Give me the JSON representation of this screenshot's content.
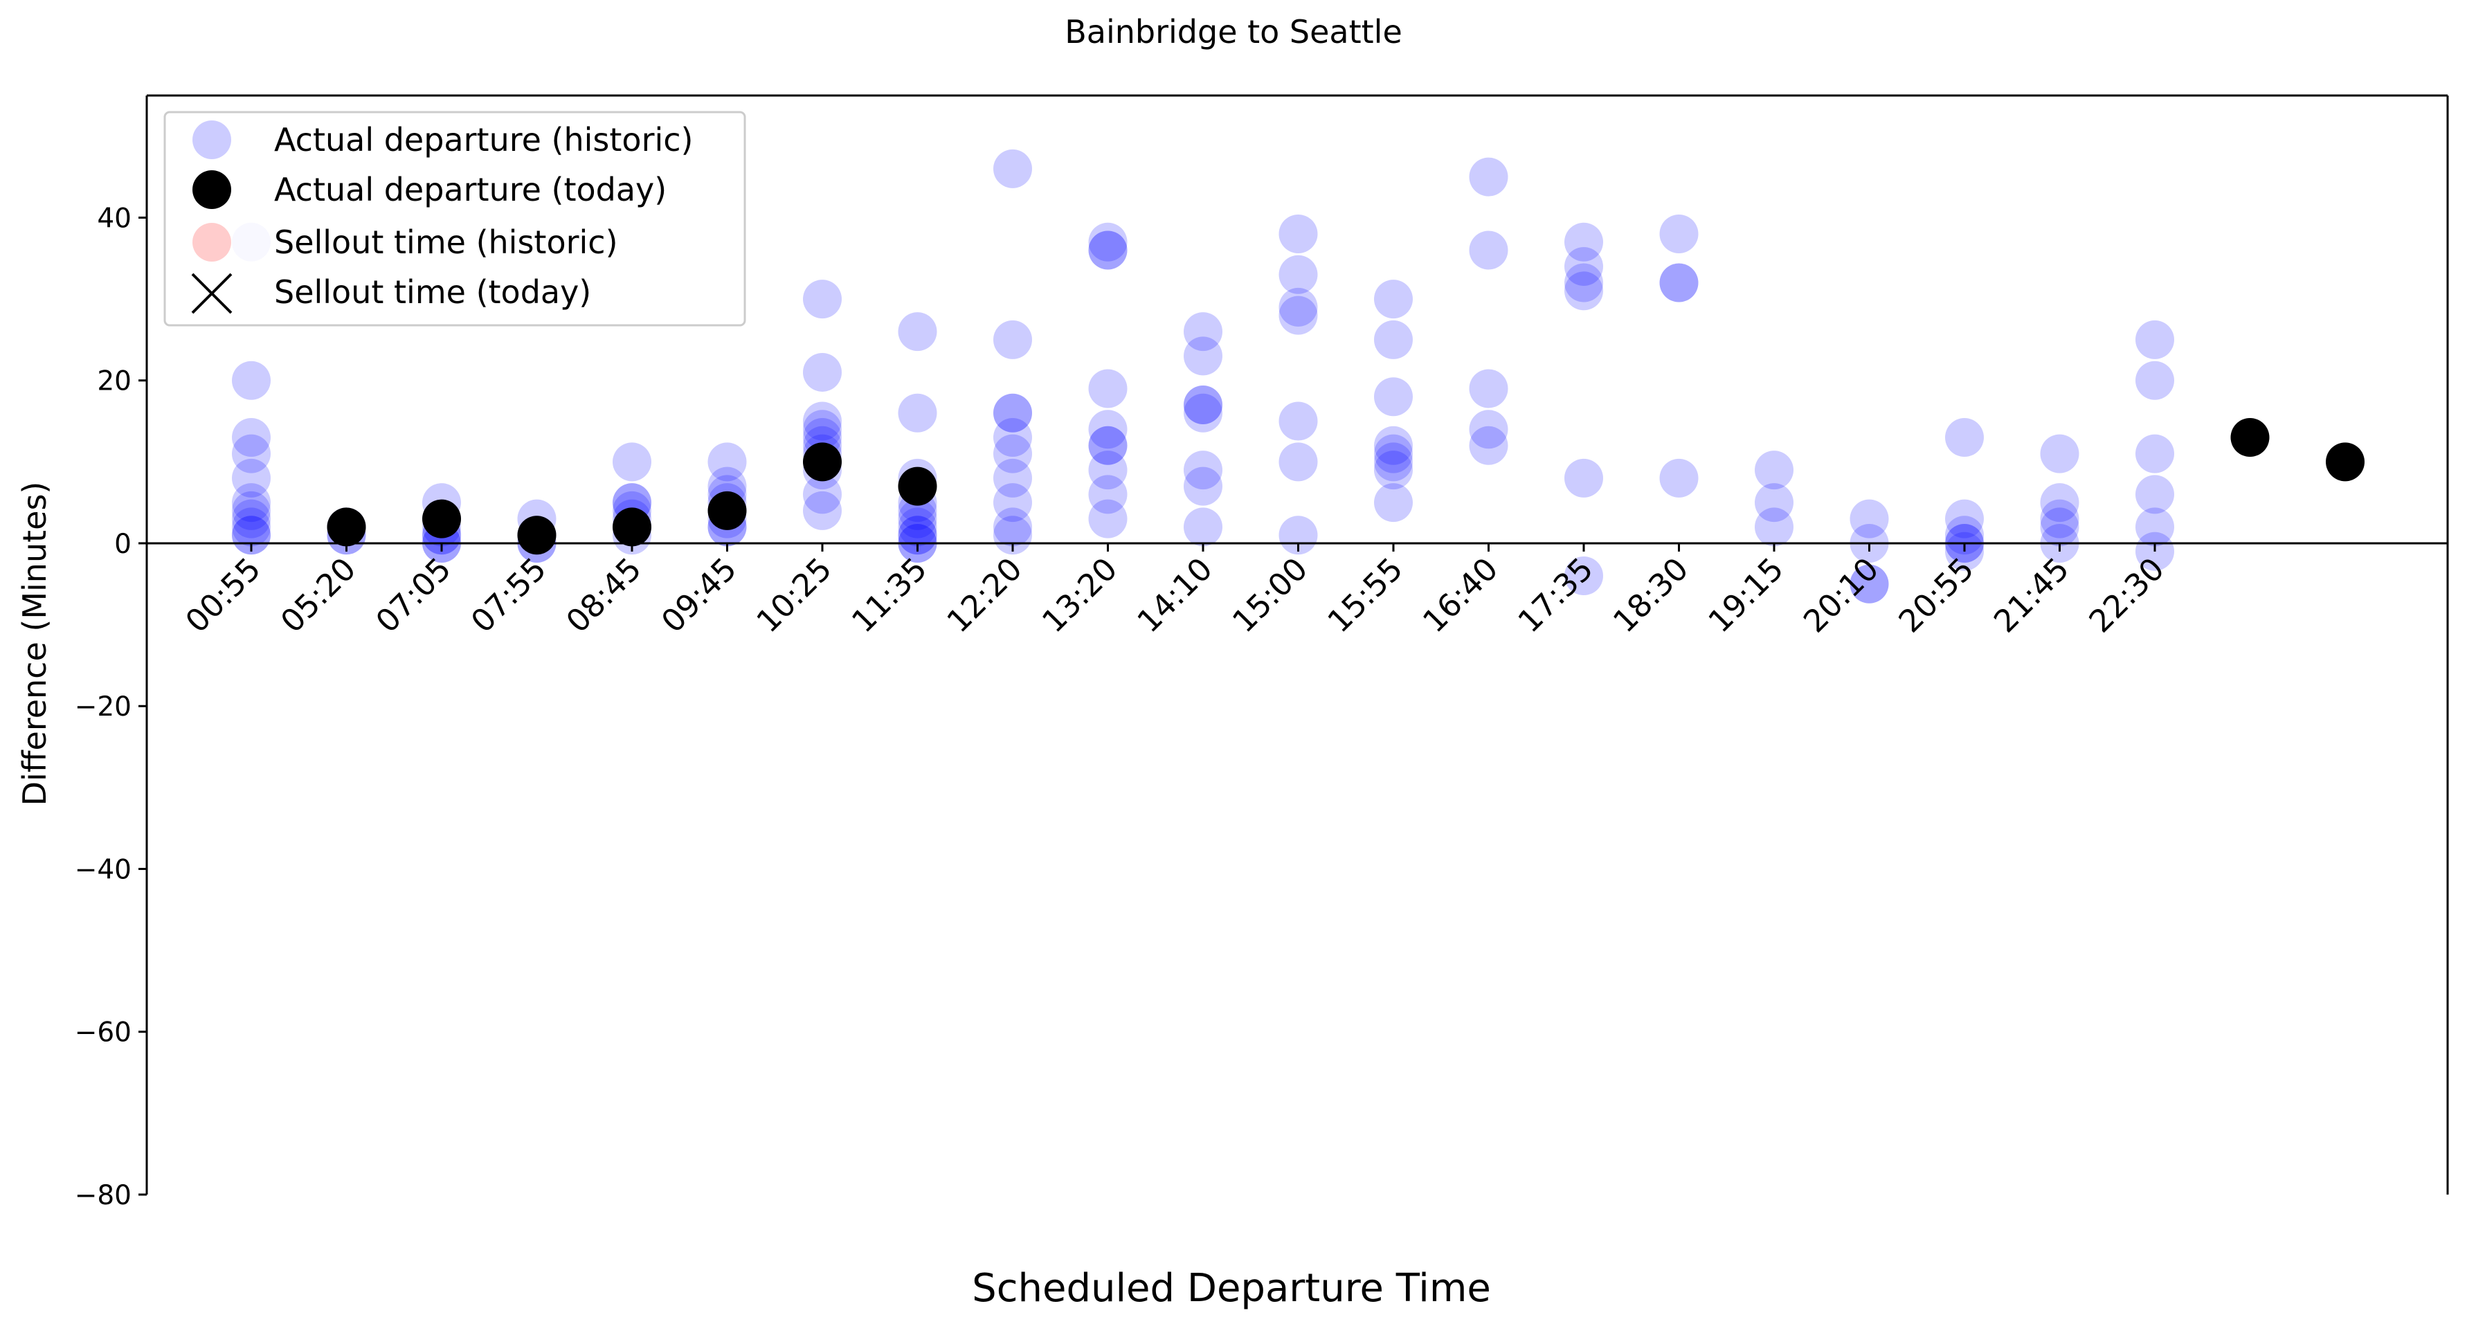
{
  "chart_data": {
    "type": "scatter",
    "title": "Bainbridge to Seattle",
    "xlabel": "Scheduled Departure Time",
    "ylabel": "Difference (Minutes)",
    "ylim": [
      -80,
      55
    ],
    "yticks": [
      40,
      20,
      0,
      -20,
      -40,
      -60,
      -80
    ],
    "ytick_labels": [
      "40",
      "20",
      "0",
      "−20",
      "−40",
      "−60",
      "−80"
    ],
    "zero_line": true,
    "grid": false,
    "legend_position": "top-left",
    "categories": [
      "00:55",
      "05:20",
      "07:05",
      "07:55",
      "08:45",
      "09:45",
      "10:25",
      "11:35",
      "12:20",
      "13:20",
      "14:10",
      "15:00",
      "15:55",
      "16:40",
      "17:35",
      "18:30",
      "19:15",
      "20:10",
      "20:55",
      "21:45",
      "22:30"
    ],
    "x_slot_count": 23,
    "series": [
      {
        "name": "Actual departure (historic)",
        "color": "#0000ff",
        "alpha": 0.2,
        "marker": "circle",
        "points": [
          {
            "x": 0,
            "y": 37
          },
          {
            "x": 0,
            "y": 20
          },
          {
            "x": 0,
            "y": 13
          },
          {
            "x": 0,
            "y": 11
          },
          {
            "x": 0,
            "y": 8
          },
          {
            "x": 0,
            "y": 5
          },
          {
            "x": 0,
            "y": 4
          },
          {
            "x": 0,
            "y": 3
          },
          {
            "x": 0,
            "y": 2
          },
          {
            "x": 0,
            "y": 1
          },
          {
            "x": 0,
            "y": 1
          },
          {
            "x": 1,
            "y": 2
          },
          {
            "x": 1,
            "y": 2
          },
          {
            "x": 1,
            "y": 1
          },
          {
            "x": 1,
            "y": 1
          },
          {
            "x": 2,
            "y": 5
          },
          {
            "x": 2,
            "y": 3
          },
          {
            "x": 2,
            "y": 2
          },
          {
            "x": 2,
            "y": 1
          },
          {
            "x": 2,
            "y": 1
          },
          {
            "x": 2,
            "y": 0
          },
          {
            "x": 2,
            "y": 0
          },
          {
            "x": 3,
            "y": 3
          },
          {
            "x": 3,
            "y": 1
          },
          {
            "x": 3,
            "y": 1
          },
          {
            "x": 3,
            "y": 0
          },
          {
            "x": 3,
            "y": 0
          },
          {
            "x": 4,
            "y": 10
          },
          {
            "x": 4,
            "y": 5
          },
          {
            "x": 4,
            "y": 5
          },
          {
            "x": 4,
            "y": 4
          },
          {
            "x": 4,
            "y": 3
          },
          {
            "x": 4,
            "y": 2
          },
          {
            "x": 4,
            "y": 2
          },
          {
            "x": 4,
            "y": 1
          },
          {
            "x": 5,
            "y": 10
          },
          {
            "x": 5,
            "y": 7
          },
          {
            "x": 5,
            "y": 6
          },
          {
            "x": 5,
            "y": 5
          },
          {
            "x": 5,
            "y": 4
          },
          {
            "x": 5,
            "y": 3
          },
          {
            "x": 5,
            "y": 2
          },
          {
            "x": 5,
            "y": 2
          },
          {
            "x": 6,
            "y": 30
          },
          {
            "x": 6,
            "y": 21
          },
          {
            "x": 6,
            "y": 15
          },
          {
            "x": 6,
            "y": 14
          },
          {
            "x": 6,
            "y": 13
          },
          {
            "x": 6,
            "y": 12
          },
          {
            "x": 6,
            "y": 11
          },
          {
            "x": 6,
            "y": 10
          },
          {
            "x": 6,
            "y": 9
          },
          {
            "x": 6,
            "y": 6
          },
          {
            "x": 6,
            "y": 4
          },
          {
            "x": 7,
            "y": 26
          },
          {
            "x": 7,
            "y": 16
          },
          {
            "x": 7,
            "y": 8
          },
          {
            "x": 7,
            "y": 5
          },
          {
            "x": 7,
            "y": 4
          },
          {
            "x": 7,
            "y": 3
          },
          {
            "x": 7,
            "y": 2
          },
          {
            "x": 7,
            "y": 1
          },
          {
            "x": 7,
            "y": 1
          },
          {
            "x": 7,
            "y": 0
          },
          {
            "x": 7,
            "y": 0
          },
          {
            "x": 8,
            "y": 46
          },
          {
            "x": 8,
            "y": 25
          },
          {
            "x": 8,
            "y": 16
          },
          {
            "x": 8,
            "y": 16
          },
          {
            "x": 8,
            "y": 13
          },
          {
            "x": 8,
            "y": 11
          },
          {
            "x": 8,
            "y": 8
          },
          {
            "x": 8,
            "y": 5
          },
          {
            "x": 8,
            "y": 2
          },
          {
            "x": 8,
            "y": 1
          },
          {
            "x": 9,
            "y": 37
          },
          {
            "x": 9,
            "y": 36
          },
          {
            "x": 9,
            "y": 36
          },
          {
            "x": 9,
            "y": 19
          },
          {
            "x": 9,
            "y": 14
          },
          {
            "x": 9,
            "y": 12
          },
          {
            "x": 9,
            "y": 12
          },
          {
            "x": 9,
            "y": 9
          },
          {
            "x": 9,
            "y": 6
          },
          {
            "x": 9,
            "y": 3
          },
          {
            "x": 10,
            "y": 26
          },
          {
            "x": 10,
            "y": 23
          },
          {
            "x": 10,
            "y": 17
          },
          {
            "x": 10,
            "y": 17
          },
          {
            "x": 10,
            "y": 16
          },
          {
            "x": 10,
            "y": 9
          },
          {
            "x": 10,
            "y": 7
          },
          {
            "x": 10,
            "y": 2
          },
          {
            "x": 11,
            "y": 38
          },
          {
            "x": 11,
            "y": 33
          },
          {
            "x": 11,
            "y": 29
          },
          {
            "x": 11,
            "y": 28
          },
          {
            "x": 11,
            "y": 15
          },
          {
            "x": 11,
            "y": 10
          },
          {
            "x": 11,
            "y": 1
          },
          {
            "x": 12,
            "y": 30
          },
          {
            "x": 12,
            "y": 25
          },
          {
            "x": 12,
            "y": 18
          },
          {
            "x": 12,
            "y": 12
          },
          {
            "x": 12,
            "y": 11
          },
          {
            "x": 12,
            "y": 10
          },
          {
            "x": 12,
            "y": 9
          },
          {
            "x": 12,
            "y": 5
          },
          {
            "x": 13,
            "y": 45
          },
          {
            "x": 13,
            "y": 36
          },
          {
            "x": 13,
            "y": 19
          },
          {
            "x": 13,
            "y": 14
          },
          {
            "x": 13,
            "y": 12
          },
          {
            "x": 14,
            "y": 37
          },
          {
            "x": 14,
            "y": 34
          },
          {
            "x": 14,
            "y": 32
          },
          {
            "x": 14,
            "y": 31
          },
          {
            "x": 14,
            "y": 8
          },
          {
            "x": 14,
            "y": -4
          },
          {
            "x": 15,
            "y": 38
          },
          {
            "x": 15,
            "y": 32
          },
          {
            "x": 15,
            "y": 32
          },
          {
            "x": 15,
            "y": 8
          },
          {
            "x": 16,
            "y": 9
          },
          {
            "x": 16,
            "y": 5
          },
          {
            "x": 16,
            "y": 2
          },
          {
            "x": 17,
            "y": 3
          },
          {
            "x": 17,
            "y": 0
          },
          {
            "x": 17,
            "y": -5
          },
          {
            "x": 17,
            "y": -5
          },
          {
            "x": 18,
            "y": 13
          },
          {
            "x": 18,
            "y": 3
          },
          {
            "x": 18,
            "y": 1
          },
          {
            "x": 18,
            "y": 0
          },
          {
            "x": 18,
            "y": 0
          },
          {
            "x": 18,
            "y": -1
          },
          {
            "x": 19,
            "y": 11
          },
          {
            "x": 19,
            "y": 5
          },
          {
            "x": 19,
            "y": 3
          },
          {
            "x": 19,
            "y": 2
          },
          {
            "x": 19,
            "y": 0
          },
          {
            "x": 20,
            "y": 25
          },
          {
            "x": 20,
            "y": 20
          },
          {
            "x": 20,
            "y": 11
          },
          {
            "x": 20,
            "y": 6
          },
          {
            "x": 20,
            "y": 2
          },
          {
            "x": 20,
            "y": -1
          }
        ]
      },
      {
        "name": "Actual departure (today)",
        "color": "#000000",
        "alpha": 1,
        "marker": "circle",
        "points": [
          {
            "x": 1,
            "y": 2
          },
          {
            "x": 2,
            "y": 3
          },
          {
            "x": 3,
            "y": 1
          },
          {
            "x": 4,
            "y": 2
          },
          {
            "x": 5,
            "y": 4
          },
          {
            "x": 6,
            "y": 10
          },
          {
            "x": 7,
            "y": 7
          },
          {
            "x": 21,
            "y": 13
          },
          {
            "x": 22,
            "y": 10
          }
        ]
      },
      {
        "name": "Sellout time (historic)",
        "color": "#ff0000",
        "alpha": 0.2,
        "marker": "circle",
        "points": []
      },
      {
        "name": "Sellout time (today)",
        "color": "#000000",
        "alpha": 1,
        "marker": "x",
        "points": []
      }
    ]
  }
}
